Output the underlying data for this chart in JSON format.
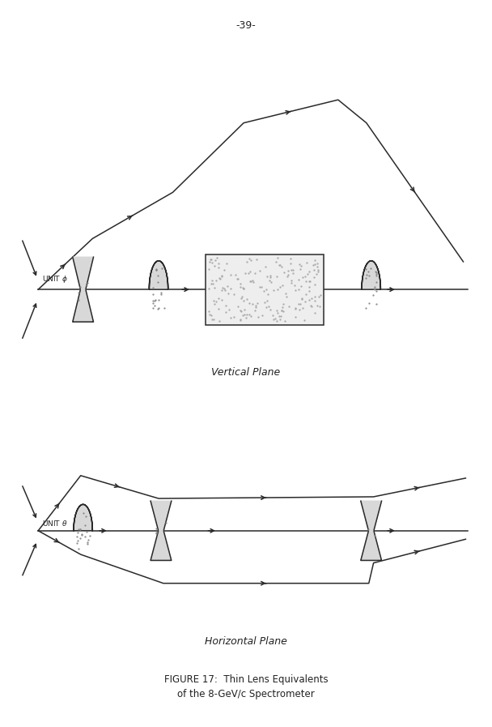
{
  "page_number": "-39-",
  "title": "FIGURE 17:  Thin Lens Equivalents\n        of the 8-GeV/c Spectrometer",
  "vertical_label": "Vertical Plane",
  "horizontal_label": "Horizontal Plane",
  "background": "#ffffff",
  "line_color": "#2a2a2a",
  "font_color": "#222222"
}
